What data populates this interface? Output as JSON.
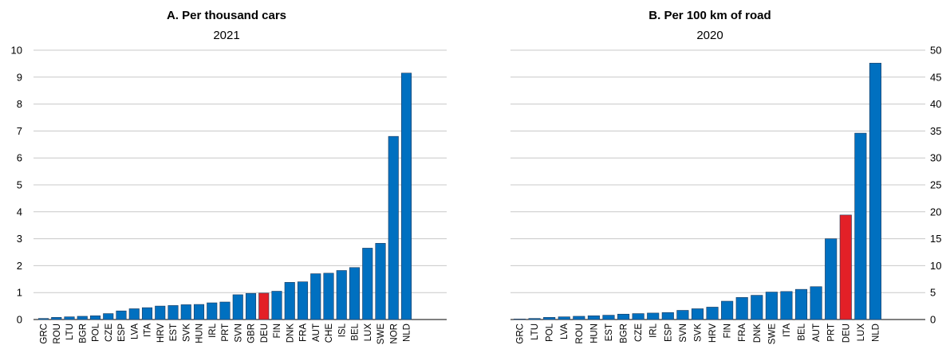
{
  "chart_data": [
    {
      "type": "bar",
      "title": "A. Per thousand cars",
      "subtitle": "2021",
      "ylim": [
        0,
        10
      ],
      "yticks": [
        0,
        1,
        2,
        3,
        4,
        5,
        6,
        7,
        8,
        9,
        10
      ],
      "grid": true,
      "bar_color": "#0070c0",
      "highlight_color": "#e32027",
      "highlight": "DEU",
      "categories": [
        "GRC",
        "ROU",
        "LTU",
        "BGR",
        "POL",
        "CZE",
        "ESP",
        "LVA",
        "ITA",
        "HRV",
        "EST",
        "SVK",
        "HUN",
        "IRL",
        "PRT",
        "SVN",
        "GBR",
        "DEU",
        "FIN",
        "DNK",
        "FRA",
        "AUT",
        "CHE",
        "ISL",
        "BEL",
        "LUX",
        "SWE",
        "NOR",
        "NLD"
      ],
      "values": [
        0.04,
        0.08,
        0.1,
        0.12,
        0.14,
        0.22,
        0.32,
        0.4,
        0.44,
        0.5,
        0.52,
        0.55,
        0.56,
        0.62,
        0.65,
        0.92,
        0.97,
        0.98,
        1.05,
        1.38,
        1.4,
        1.7,
        1.72,
        1.82,
        1.93,
        2.65,
        2.83,
        6.8,
        9.15
      ]
    },
    {
      "type": "bar",
      "title": "B. Per 100 km of road",
      "subtitle": "2020",
      "ylim": [
        0,
        50
      ],
      "yticks": [
        0,
        5,
        10,
        15,
        20,
        25,
        30,
        35,
        40,
        45,
        50
      ],
      "grid": true,
      "bar_color": "#0070c0",
      "highlight_color": "#e32027",
      "highlight": "DEU",
      "categories": [
        "GRC",
        "LTU",
        "POL",
        "LVA",
        "ROU",
        "HUN",
        "EST",
        "BGR",
        "CZE",
        "IRL",
        "ESP",
        "SVN",
        "SVK",
        "HRV",
        "FIN",
        "FRA",
        "DNK",
        "SWE",
        "ITA",
        "BEL",
        "AUT",
        "PRT",
        "DEU",
        "LUX",
        "NLD"
      ],
      "values": [
        0.1,
        0.2,
        0.4,
        0.5,
        0.6,
        0.7,
        0.8,
        1.0,
        1.1,
        1.2,
        1.3,
        1.7,
        2.0,
        2.3,
        3.4,
        4.1,
        4.5,
        5.1,
        5.2,
        5.6,
        6.1,
        15.0,
        19.4,
        34.6,
        47.6
      ]
    }
  ]
}
